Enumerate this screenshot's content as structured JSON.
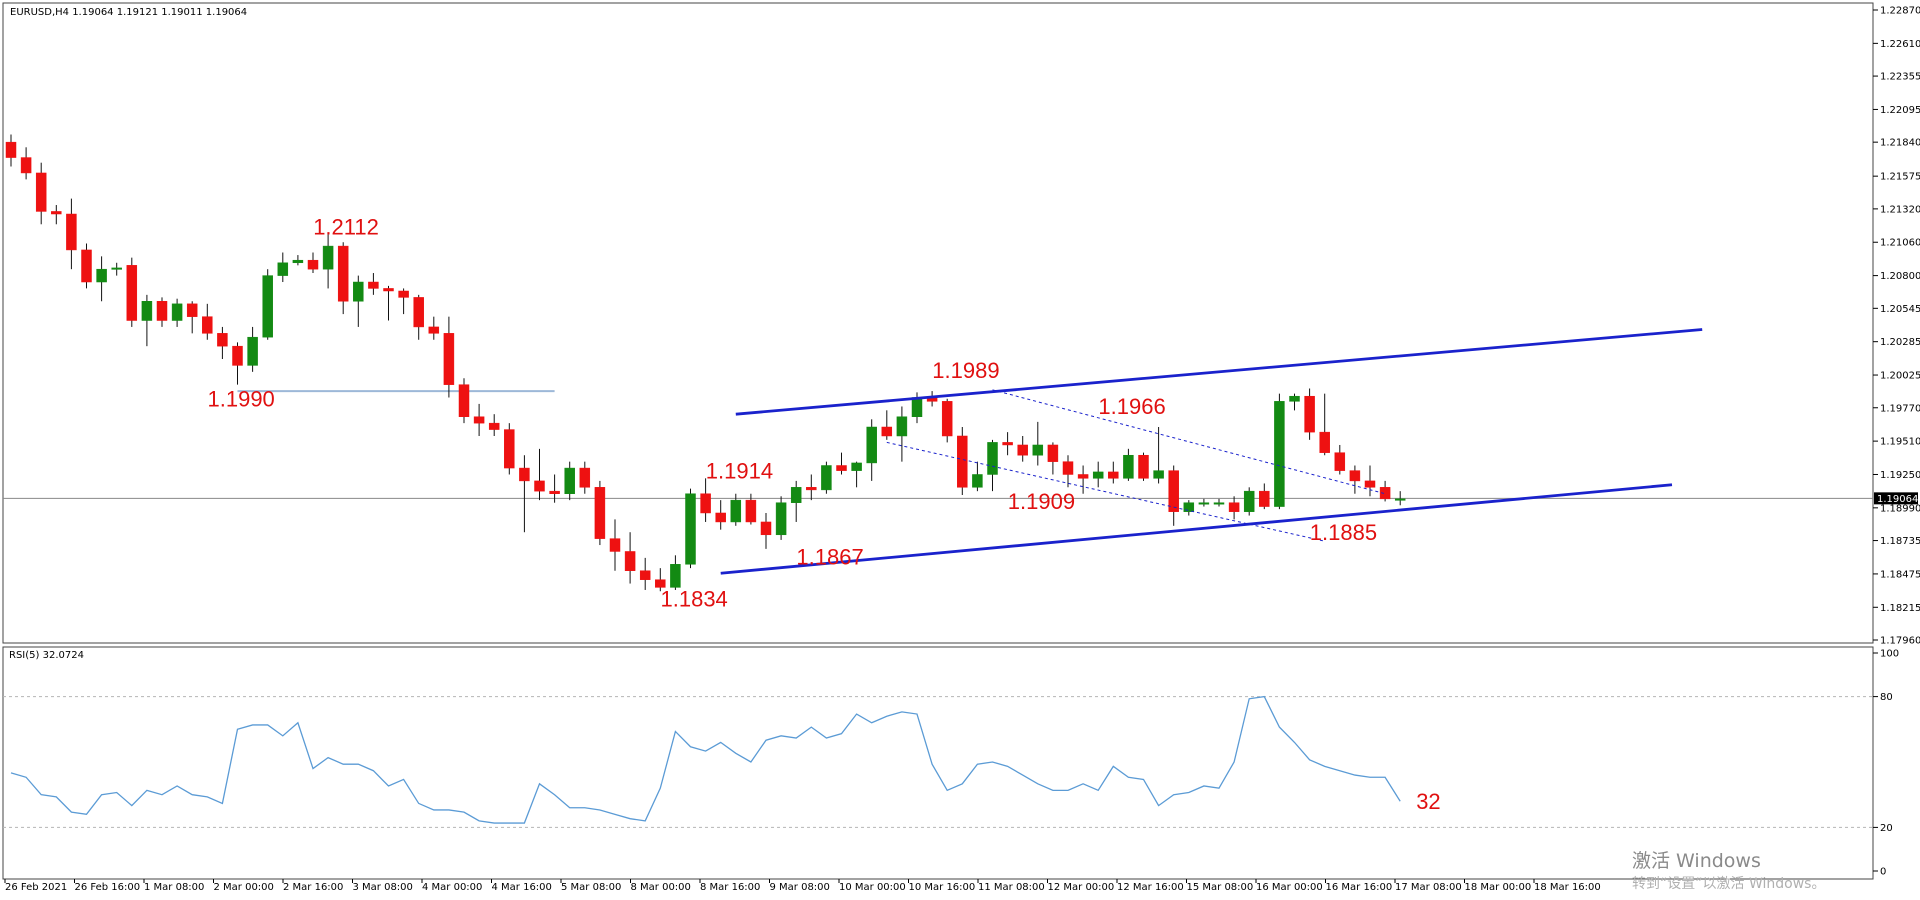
{
  "header": {
    "symbol_text": "EURUSD,H4  1.19064 1.19121 1.19011 1.19064"
  },
  "price_axis": {
    "ticks": [
      "1.22870",
      "1.22610",
      "1.22355",
      "1.22095",
      "1.21840",
      "1.21575",
      "1.21320",
      "1.21060",
      "1.20800",
      "1.20545",
      "1.20285",
      "1.20025",
      "1.19770",
      "1.19510",
      "1.19250",
      "1.18990",
      "1.18735",
      "1.18475",
      "1.18215",
      "1.17960"
    ],
    "current_price_label": "1.19064"
  },
  "rsi_panel": {
    "title": "RSI(5) 32.0724",
    "ticks": [
      "100",
      "80",
      "20",
      "0"
    ],
    "current_label": "32"
  },
  "time_axis": {
    "labels": [
      "26 Feb 2021",
      "26 Feb 16:00",
      "1 Mar 08:00",
      "2 Mar 00:00",
      "2 Mar 16:00",
      "3 Mar 08:00",
      "4 Mar 00:00",
      "4 Mar 16:00",
      "5 Mar 08:00",
      "8 Mar 00:00",
      "8 Mar 16:00",
      "9 Mar 08:00",
      "10 Mar 00:00",
      "10 Mar 16:00",
      "11 Mar 08:00",
      "12 Mar 00:00",
      "12 Mar 16:00",
      "15 Mar 08:00",
      "16 Mar 00:00",
      "16 Mar 16:00",
      "17 Mar 08:00",
      "18 Mar 00:00",
      "18 Mar 16:00"
    ]
  },
  "annotations": [
    {
      "text": "1.2112",
      "x": 22,
      "y": 1.2112
    },
    {
      "text": "1.1990",
      "x": 15,
      "y": 1.1978
    },
    {
      "text": "1.1914",
      "x": 48,
      "y": 1.1922
    },
    {
      "text": "1.1867",
      "x": 54,
      "y": 1.1855
    },
    {
      "text": "1.1834",
      "x": 45,
      "y": 1.1822
    },
    {
      "text": "1.1989",
      "x": 63,
      "y": 1.2
    },
    {
      "text": "1.1966",
      "x": 74,
      "y": 1.1972
    },
    {
      "text": "1.1909",
      "x": 68,
      "y": 1.1898
    },
    {
      "text": "1.1885",
      "x": 88,
      "y": 1.1874
    }
  ],
  "colors": {
    "bull": "#138a13",
    "bear": "#ee1111",
    "trend": "#1a22cc",
    "rsi": "#5b9bd5",
    "annotation": "#e01010"
  },
  "watermark": {
    "line1": "激活 Windows",
    "line2": "转到“设置”以激活 Windows。"
  },
  "chart_data": {
    "type": "candlestick",
    "title": "EURUSD,H4",
    "ylim": [
      1.1796,
      1.2287
    ],
    "ohlc": [
      [
        1.2184,
        1.219,
        1.2165,
        1.2172
      ],
      [
        1.2172,
        1.218,
        1.2155,
        1.216
      ],
      [
        1.216,
        1.2168,
        1.212,
        1.213
      ],
      [
        1.213,
        1.2135,
        1.212,
        1.2128
      ],
      [
        1.2128,
        1.214,
        1.2085,
        1.21
      ],
      [
        1.21,
        1.2105,
        1.207,
        1.2075
      ],
      [
        1.2075,
        1.2095,
        1.206,
        1.2085
      ],
      [
        1.2085,
        1.209,
        1.208,
        1.2086
      ],
      [
        1.2088,
        1.2094,
        1.204,
        1.2045
      ],
      [
        1.2045,
        1.2065,
        1.2025,
        1.206
      ],
      [
        1.206,
        1.2063,
        1.204,
        1.2045
      ],
      [
        1.2045,
        1.2062,
        1.204,
        1.2058
      ],
      [
        1.2058,
        1.206,
        1.2035,
        1.2048
      ],
      [
        1.2048,
        1.2058,
        1.203,
        1.2035
      ],
      [
        1.2035,
        1.204,
        1.2015,
        1.2025
      ],
      [
        1.2025,
        1.2028,
        1.1995,
        1.201
      ],
      [
        1.201,
        1.204,
        1.2005,
        1.2032
      ],
      [
        1.2032,
        1.2085,
        1.203,
        1.208
      ],
      [
        1.208,
        1.2098,
        1.2075,
        1.209
      ],
      [
        1.209,
        1.2096,
        1.2088,
        1.2092
      ],
      [
        1.2092,
        1.2098,
        1.2082,
        1.2085
      ],
      [
        1.2085,
        1.2112,
        1.207,
        1.2103
      ],
      [
        1.2103,
        1.2106,
        1.205,
        1.206
      ],
      [
        1.206,
        1.208,
        1.204,
        1.2075
      ],
      [
        1.2075,
        1.2082,
        1.2065,
        1.207
      ],
      [
        1.207,
        1.2072,
        1.2045,
        1.2068
      ],
      [
        1.2068,
        1.207,
        1.205,
        1.2063
      ],
      [
        1.2063,
        1.2065,
        1.203,
        1.204
      ],
      [
        1.204,
        1.2048,
        1.203,
        1.2035
      ],
      [
        1.2035,
        1.2048,
        1.1985,
        1.1995
      ],
      [
        1.1995,
        1.2,
        1.1965,
        1.197
      ],
      [
        1.197,
        1.198,
        1.1955,
        1.1965
      ],
      [
        1.1965,
        1.1972,
        1.1955,
        1.196
      ],
      [
        1.196,
        1.1965,
        1.1925,
        1.193
      ],
      [
        1.193,
        1.194,
        1.188,
        1.192
      ],
      [
        1.192,
        1.1945,
        1.1905,
        1.1912
      ],
      [
        1.1912,
        1.1925,
        1.1903,
        1.191
      ],
      [
        1.191,
        1.1935,
        1.1905,
        1.193
      ],
      [
        1.193,
        1.1935,
        1.191,
        1.1915
      ],
      [
        1.1915,
        1.192,
        1.187,
        1.1875
      ],
      [
        1.1875,
        1.189,
        1.185,
        1.1865
      ],
      [
        1.1865,
        1.188,
        1.184,
        1.185
      ],
      [
        1.185,
        1.186,
        1.1835,
        1.1843
      ],
      [
        1.1843,
        1.1852,
        1.1834,
        1.1837
      ],
      [
        1.1837,
        1.1862,
        1.1835,
        1.1855
      ],
      [
        1.1855,
        1.1914,
        1.1852,
        1.191
      ],
      [
        1.191,
        1.1922,
        1.1888,
        1.1895
      ],
      [
        1.1895,
        1.1905,
        1.1882,
        1.1888
      ],
      [
        1.1888,
        1.191,
        1.1885,
        1.1905
      ],
      [
        1.1905,
        1.191,
        1.1886,
        1.1888
      ],
      [
        1.1888,
        1.1895,
        1.1867,
        1.1878
      ],
      [
        1.1878,
        1.1908,
        1.1874,
        1.1903
      ],
      [
        1.1903,
        1.192,
        1.1888,
        1.1915
      ],
      [
        1.1915,
        1.1925,
        1.1905,
        1.1913
      ],
      [
        1.1913,
        1.1935,
        1.191,
        1.1932
      ],
      [
        1.1932,
        1.1942,
        1.1925,
        1.1928
      ],
      [
        1.1928,
        1.1935,
        1.1915,
        1.1934
      ],
      [
        1.1934,
        1.1968,
        1.192,
        1.1962
      ],
      [
        1.1962,
        1.1975,
        1.1952,
        1.1955
      ],
      [
        1.1955,
        1.1978,
        1.1935,
        1.197
      ],
      [
        1.197,
        1.1989,
        1.1965,
        1.1985
      ],
      [
        1.1985,
        1.199,
        1.1978,
        1.1982
      ],
      [
        1.1982,
        1.1984,
        1.195,
        1.1955
      ],
      [
        1.1955,
        1.1962,
        1.1909,
        1.1915
      ],
      [
        1.1915,
        1.1935,
        1.1912,
        1.1925
      ],
      [
        1.1925,
        1.1952,
        1.1912,
        1.195
      ],
      [
        1.195,
        1.1958,
        1.194,
        1.1948
      ],
      [
        1.1948,
        1.1955,
        1.1935,
        1.194
      ],
      [
        1.194,
        1.1966,
        1.1932,
        1.1948
      ],
      [
        1.1948,
        1.195,
        1.1925,
        1.1935
      ],
      [
        1.1935,
        1.194,
        1.1915,
        1.1925
      ],
      [
        1.1925,
        1.1932,
        1.191,
        1.1922
      ],
      [
        1.1922,
        1.1935,
        1.1915,
        1.1927
      ],
      [
        1.1927,
        1.1935,
        1.1918,
        1.1922
      ],
      [
        1.1922,
        1.1945,
        1.192,
        1.194
      ],
      [
        1.194,
        1.1942,
        1.192,
        1.1922
      ],
      [
        1.1922,
        1.1962,
        1.1918,
        1.1928
      ],
      [
        1.1928,
        1.1932,
        1.1885,
        1.1896
      ],
      [
        1.1896,
        1.1905,
        1.1893,
        1.1903
      ],
      [
        1.1903,
        1.1906,
        1.19,
        1.1903
      ],
      [
        1.1903,
        1.1906,
        1.19,
        1.1903
      ],
      [
        1.1903,
        1.1908,
        1.189,
        1.1896
      ],
      [
        1.1896,
        1.1915,
        1.1893,
        1.1912
      ],
      [
        1.1912,
        1.1918,
        1.1898,
        1.19
      ],
      [
        1.19,
        1.1988,
        1.1898,
        1.1982
      ],
      [
        1.1982,
        1.1988,
        1.1975,
        1.1986
      ],
      [
        1.1986,
        1.1992,
        1.1952,
        1.1958
      ],
      [
        1.1958,
        1.1988,
        1.194,
        1.1942
      ],
      [
        1.1942,
        1.1948,
        1.1925,
        1.1928
      ],
      [
        1.1928,
        1.1932,
        1.191,
        1.192
      ],
      [
        1.192,
        1.1932,
        1.1908,
        1.1915
      ],
      [
        1.1915,
        1.192,
        1.1904,
        1.1906
      ],
      [
        1.1906,
        1.1912,
        1.1901,
        1.1906
      ]
    ],
    "rsi_values": [
      45,
      43,
      35,
      34,
      27,
      26,
      35,
      36,
      30,
      37,
      35,
      39,
      35,
      34,
      31,
      65,
      67,
      67,
      62,
      68,
      47,
      52,
      49,
      49,
      46,
      39,
      42,
      31,
      28,
      28,
      27,
      23,
      22,
      22,
      22,
      40,
      35,
      29,
      29,
      28,
      26,
      24,
      23,
      38,
      64,
      57,
      55,
      59,
      54,
      50,
      60,
      62,
      61,
      66,
      61,
      63,
      72,
      68,
      71,
      73,
      72,
      49,
      37,
      40,
      49,
      50,
      48,
      44,
      40,
      37,
      37,
      40,
      37,
      48,
      43,
      42,
      30,
      35,
      36,
      39,
      38,
      50,
      79,
      80,
      66,
      59,
      51,
      48,
      46,
      44,
      43,
      43,
      32
    ],
    "rsi_ylim": [
      0,
      100
    ],
    "horizontal_levels": [
      {
        "price": 1.199,
        "from": 15,
        "to": 36
      }
    ],
    "trendlines": [
      {
        "from": [
          47.0,
          1.1848
        ],
        "to": [
          110.0,
          1.1917
        ],
        "style": "solid"
      },
      {
        "from": [
          48.0,
          1.1972
        ],
        "to": [
          112.0,
          1.2038
        ],
        "style": "solid"
      },
      {
        "from": [
          65.0,
          1.1991
        ],
        "to": [
          91.0,
          1.191
        ],
        "style": "dotted"
      },
      {
        "from": [
          58.0,
          1.195
        ],
        "to": [
          87.0,
          1.1873
        ],
        "style": "dotted"
      }
    ]
  }
}
